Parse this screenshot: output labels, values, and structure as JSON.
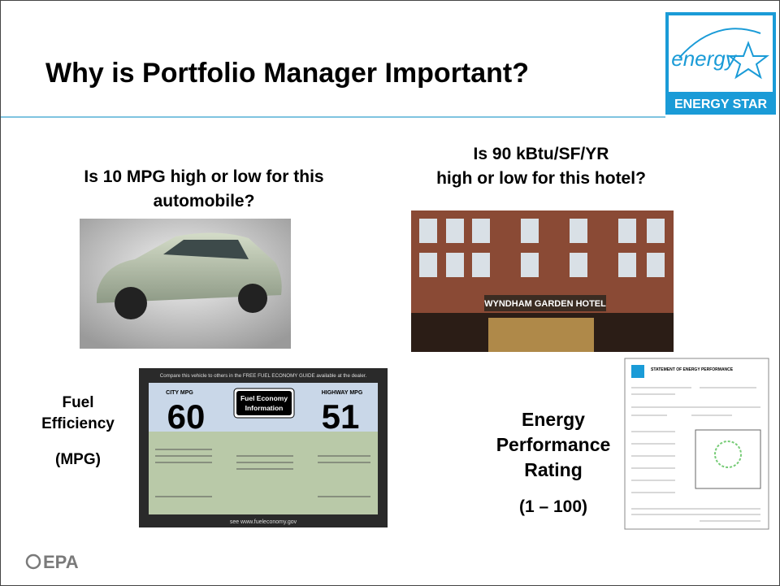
{
  "title": "Why is Portfolio Manager Important?",
  "logo": {
    "script": "energy",
    "label": "ENERGY STAR"
  },
  "left": {
    "question": [
      "Is 10 MPG high or low for this",
      "automobile?"
    ],
    "label": [
      "Fuel",
      "Efficiency",
      "(MPG)"
    ]
  },
  "right": {
    "question": [
      "Is 90 kBtu/SF/YR",
      "high or low for this hotel?"
    ],
    "label": [
      "Energy",
      "Performance",
      "Rating",
      "(1 – 100)"
    ]
  },
  "fuel_label": {
    "banner": "Compare this vehicle to others in the FREE FUEL ECONOMY GUIDE available at the dealer.",
    "city": "CITY MPG",
    "city_value": "60",
    "highway": "HIGHWAY MPG",
    "highway_value": "51",
    "badge": [
      "Fuel Economy",
      "Information"
    ],
    "footer": "see www.fueleconomy.gov"
  },
  "hotel_sign": "WYNDHAM GARDEN HOTEL",
  "document_title": "STATEMENT OF ENERGY PERFORMANCE",
  "footer_logo": "EPA"
}
